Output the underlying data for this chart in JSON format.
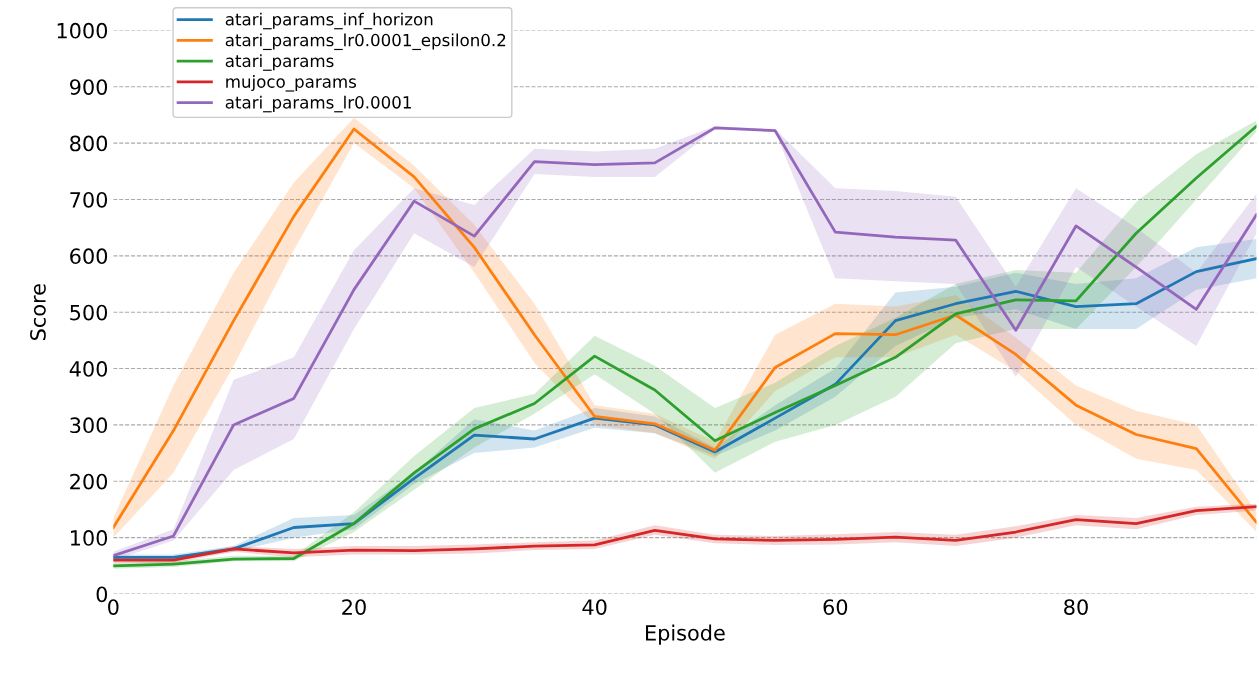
{
  "chart_data": {
    "type": "line",
    "xlabel": "Episode",
    "ylabel": "Score",
    "x": [
      0,
      5,
      10,
      15,
      20,
      25,
      30,
      35,
      40,
      45,
      50,
      55,
      60,
      65,
      70,
      75,
      80,
      85,
      90,
      95
    ],
    "xlim": [
      0,
      95
    ],
    "xticks": [
      0,
      20,
      40,
      60,
      80
    ],
    "ylim": [
      0,
      1000
    ],
    "yticks": [
      0,
      100,
      200,
      300,
      400,
      500,
      600,
      700,
      800,
      900,
      1000
    ],
    "grid": "y",
    "legend": "top left",
    "marker": "none",
    "line_style": "solid",
    "series": [
      {
        "name": "atari_params_inf_horizon",
        "color": "#1f77b4",
        "values": [
          65,
          65,
          80,
          118,
          125,
          205,
          282,
          275,
          312,
          300,
          252,
          312,
          372,
          485,
          515,
          537,
          510,
          515,
          572,
          595
        ],
        "lower": [
          60,
          60,
          75,
          100,
          115,
          195,
          250,
          260,
          295,
          285,
          245,
          290,
          350,
          440,
          490,
          505,
          470,
          470,
          540,
          560
        ],
        "upper": [
          70,
          70,
          85,
          135,
          140,
          215,
          310,
          290,
          330,
          315,
          260,
          335,
          400,
          535,
          545,
          570,
          550,
          560,
          615,
          630
        ]
      },
      {
        "name": "atari_params_lr0.0001_epsilon0.2",
        "color": "#ff7f0e",
        "values": [
          118,
          290,
          485,
          670,
          825,
          740,
          615,
          460,
          315,
          302,
          255,
          402,
          462,
          460,
          495,
          425,
          335,
          283,
          258,
          127
        ],
        "lower": [
          100,
          215,
          405,
          610,
          800,
          720,
          570,
          410,
          300,
          285,
          240,
          360,
          420,
          420,
          460,
          395,
          300,
          240,
          220,
          110
        ],
        "upper": [
          135,
          370,
          570,
          730,
          845,
          760,
          655,
          515,
          335,
          320,
          270,
          460,
          515,
          510,
          530,
          455,
          370,
          325,
          300,
          145
        ]
      },
      {
        "name": "atari_params",
        "color": "#2ca02c",
        "values": [
          50,
          53,
          62,
          63,
          125,
          215,
          293,
          338,
          422,
          362,
          272,
          322,
          370,
          420,
          497,
          522,
          520,
          640,
          738,
          830
        ],
        "lower": [
          45,
          48,
          58,
          58,
          110,
          185,
          260,
          320,
          390,
          320,
          215,
          270,
          300,
          350,
          445,
          470,
          470,
          580,
          700,
          820
        ],
        "upper": [
          55,
          58,
          68,
          68,
          145,
          245,
          330,
          355,
          458,
          405,
          330,
          375,
          440,
          490,
          550,
          575,
          570,
          695,
          780,
          840
        ]
      },
      {
        "name": "mujoco_params",
        "color": "#d62728",
        "values": [
          60,
          60,
          80,
          73,
          78,
          77,
          80,
          85,
          87,
          113,
          98,
          95,
          97,
          101,
          95,
          110,
          132,
          125,
          148,
          155
        ],
        "lower": [
          55,
          55,
          75,
          65,
          70,
          70,
          72,
          78,
          80,
          105,
          90,
          87,
          88,
          92,
          85,
          100,
          122,
          115,
          140,
          148
        ],
        "upper": [
          65,
          65,
          85,
          80,
          85,
          85,
          88,
          92,
          95,
          122,
          105,
          103,
          106,
          110,
          105,
          120,
          140,
          135,
          155,
          160
        ]
      },
      {
        "name": "atari_params_lr0.0001",
        "color": "#9467bd",
        "values": [
          68,
          103,
          300,
          347,
          540,
          697,
          635,
          767,
          762,
          765,
          827,
          822,
          642,
          633,
          628,
          468,
          653,
          580,
          505,
          673
        ],
        "lower": [
          60,
          95,
          220,
          275,
          470,
          640,
          580,
          745,
          740,
          740,
          825,
          820,
          560,
          555,
          550,
          385,
          580,
          510,
          440,
          640
        ],
        "upper": [
          75,
          115,
          380,
          420,
          610,
          720,
          690,
          790,
          785,
          790,
          830,
          825,
          720,
          715,
          705,
          545,
          720,
          650,
          570,
          710
        ]
      }
    ]
  }
}
